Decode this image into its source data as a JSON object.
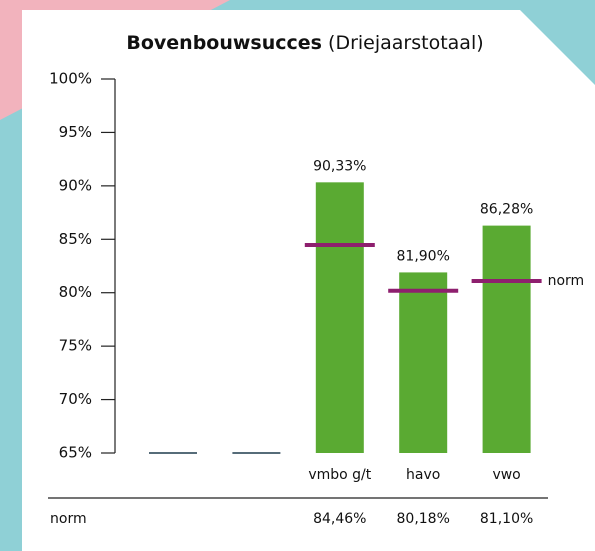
{
  "chart_data": {
    "type": "bar",
    "title": "Bovenbouwsucces",
    "subtitle": "(Driejaarstotaal)",
    "categories": [
      null,
      null,
      "vmbo g/t",
      "havo",
      "vwo"
    ],
    "values": [
      null,
      null,
      90.33,
      81.9,
      86.28
    ],
    "value_labels": [
      null,
      null,
      "90,33%",
      "81,90%",
      "86,28%"
    ],
    "color": "#5aaa32",
    "norm": {
      "name": "norm",
      "color": "#8e1f6e",
      "values": [
        null,
        null,
        84.46,
        80.18,
        81.1
      ],
      "value_labels": [
        null,
        null,
        "84,46%",
        "80,18%",
        "81,10%"
      ]
    },
    "ylim": [
      65,
      100
    ],
    "yticks": [
      {
        "value": 65,
        "label": "65%"
      },
      {
        "value": 70,
        "label": "70%"
      },
      {
        "value": 75,
        "label": "75%"
      },
      {
        "value": 80,
        "label": "80%"
      },
      {
        "value": 85,
        "label": "85%"
      },
      {
        "value": 90,
        "label": "90%"
      },
      {
        "value": 95,
        "label": "95%"
      },
      {
        "value": 100,
        "label": "100%"
      }
    ],
    "grid": false
  }
}
